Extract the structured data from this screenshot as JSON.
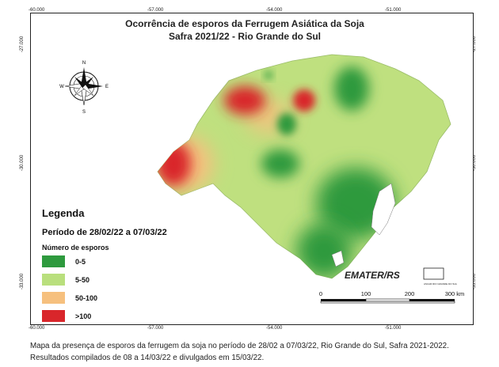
{
  "title_line1": "Ocorrência de esporos da Ferrugem Asiática da Soja",
  "title_line2": "Safra 2021/22 - Rio Grande do Sul",
  "legend": {
    "heading": "Legenda",
    "period": "Período de 28/02/22 a 07/03/22",
    "subheading": "Número de esporos",
    "classes": [
      {
        "label": "0-5",
        "color": "#2e9a3e"
      },
      {
        "label": "5-50",
        "color": "#b9df7d"
      },
      {
        "label": "50-100",
        "color": "#f6c07e"
      },
      {
        "label": ">100",
        "color": "#d9262b"
      }
    ]
  },
  "coords": {
    "lon": [
      "-60.000",
      "-57.000",
      "-54.000",
      "-51.000"
    ],
    "lat": [
      "-27.000",
      "-30.000",
      "-33.000"
    ]
  },
  "compass": {
    "n": "N",
    "s": "S",
    "e": "E",
    "w": "W"
  },
  "scale": {
    "ticks": [
      "0",
      "100",
      "200",
      "300 km"
    ]
  },
  "logo": {
    "text": "EMATER/RS",
    "partner": "ASCAR RIO GRANDE DO SUL"
  },
  "caption": {
    "line1": "Mapa da presença de esporos da ferrugem da soja no período de 28/02 a 07/03/22, Rio Grande do Sul, Safra 2021-2022.",
    "line2": "Resultados compilados de 08 a 14/03/22 e divulgados em 15/03/22."
  }
}
